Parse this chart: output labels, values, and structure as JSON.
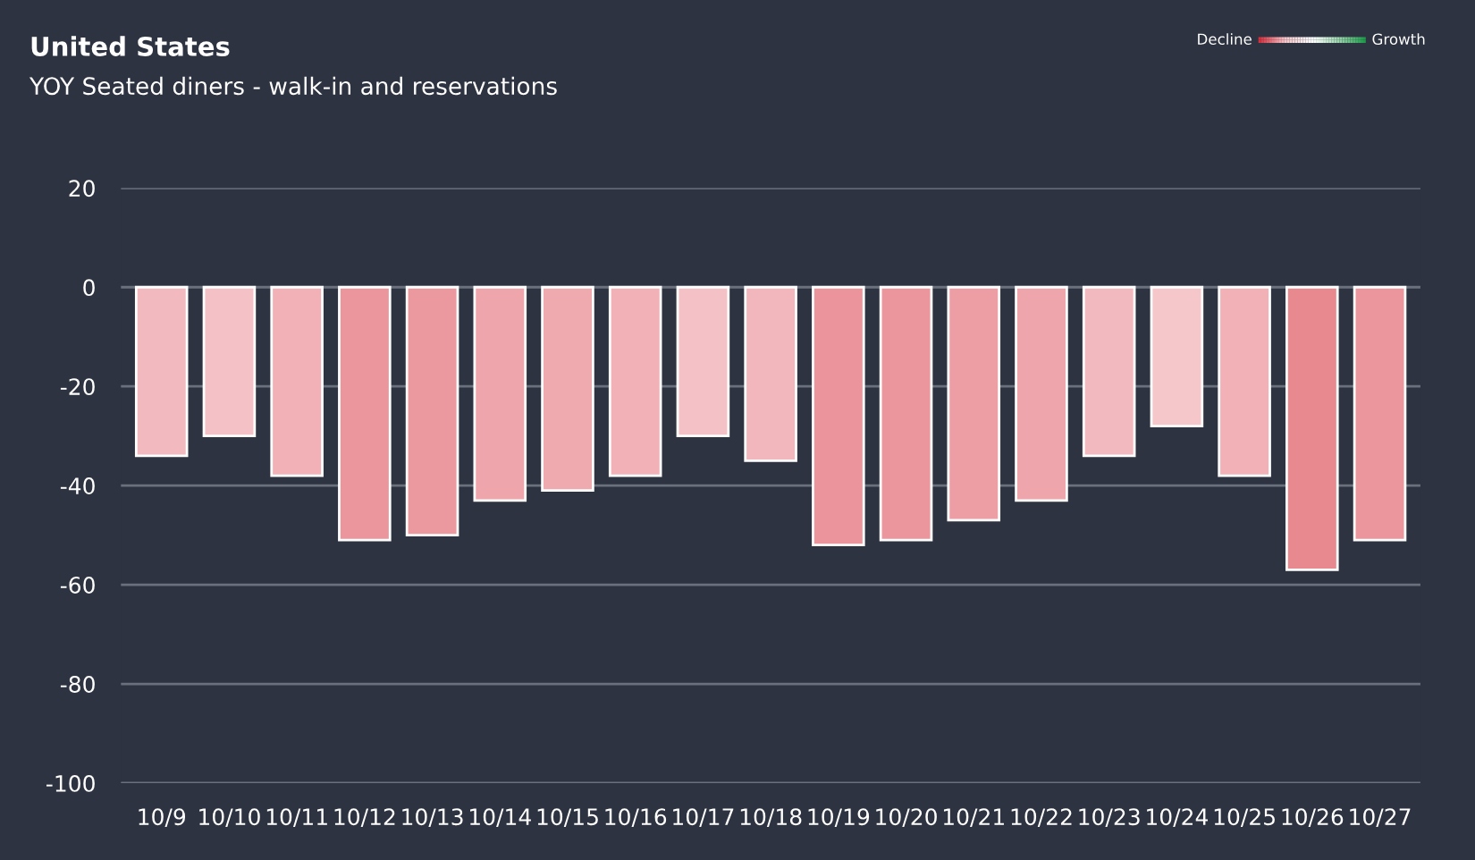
{
  "chart_data": {
    "type": "bar",
    "title": "United States",
    "subtitle": "YOY Seated diners - walk-in and reservations",
    "categories": [
      "10/9",
      "10/10",
      "10/11",
      "10/12",
      "10/13",
      "10/14",
      "10/15",
      "10/16",
      "10/17",
      "10/18",
      "10/19",
      "10/20",
      "10/21",
      "10/22",
      "10/23",
      "10/24",
      "10/25",
      "10/26",
      "10/27"
    ],
    "values": [
      -34,
      -30,
      -38,
      -51,
      -50,
      -43,
      -41,
      -38,
      -30,
      -35,
      -52,
      -51,
      -47,
      -43,
      -34,
      -28,
      -38,
      -57,
      -51
    ],
    "colors": [
      "#f2b9be",
      "#f4c2c6",
      "#f1b1b7",
      "#eb969d",
      "#eb989f",
      "#eea6ac",
      "#efaab0",
      "#f1b1b7",
      "#f4c2c6",
      "#f2b7bc",
      "#eb949b",
      "#eb969d",
      "#ec9ea4",
      "#eea6ac",
      "#f2b9be",
      "#f5c6ca",
      "#f1b1b7",
      "#e8898f",
      "#eb969d"
    ],
    "ylim": [
      -100,
      20
    ],
    "yticks": [
      -100,
      -80,
      -60,
      -40,
      -20,
      0,
      20
    ],
    "grid": "y",
    "annotations": [
      "Decline",
      "Growth"
    ]
  }
}
